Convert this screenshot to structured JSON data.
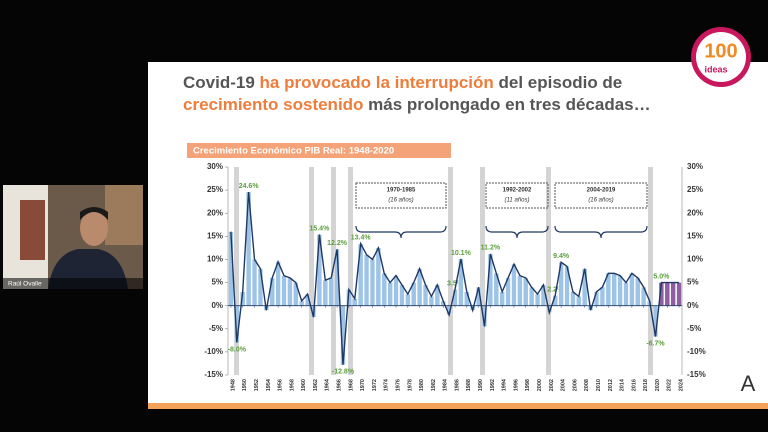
{
  "call": {
    "participant_name": "Raúl Ovalle"
  },
  "logo": {
    "number": "100",
    "word": "ideas"
  },
  "slide": {
    "title": [
      "Covid-19 ",
      "ha provocado la interrupción",
      " del episodio de",
      "crecimiento sostenido",
      " más prolongado en tres décadas…"
    ],
    "periods": [
      {
        "range": "1970-1985",
        "duration": "(16 años)"
      },
      {
        "range": "1992-2002",
        "duration": "(11 años)"
      },
      {
        "range": "2004-2019",
        "duration": "(16 años)"
      }
    ]
  },
  "chart_data": {
    "type": "bar",
    "title": "Crecimiento Económico PIB Real: 1948-2020",
    "x": [
      1948,
      1949,
      1950,
      1951,
      1952,
      1953,
      1954,
      1955,
      1956,
      1957,
      1958,
      1959,
      1960,
      1961,
      1962,
      1963,
      1964,
      1965,
      1966,
      1967,
      1968,
      1969,
      1970,
      1971,
      1972,
      1973,
      1974,
      1975,
      1976,
      1977,
      1978,
      1979,
      1980,
      1981,
      1982,
      1983,
      1984,
      1985,
      1986,
      1987,
      1988,
      1989,
      1990,
      1991,
      1992,
      1993,
      1994,
      1995,
      1996,
      1997,
      1998,
      1999,
      2000,
      2001,
      2002,
      2003,
      2004,
      2005,
      2006,
      2007,
      2008,
      2009,
      2010,
      2011,
      2012,
      2013,
      2014,
      2015,
      2016,
      2017,
      2018,
      2019,
      2020,
      2021,
      2022,
      2023,
      2024
    ],
    "values": [
      16,
      -8,
      3,
      24.6,
      10,
      8,
      -1,
      6,
      9.5,
      6.5,
      6,
      5,
      1,
      2.5,
      -2.5,
      15.4,
      5.5,
      6,
      12.2,
      -12.8,
      3.5,
      1.5,
      13.4,
      11,
      10,
      12.5,
      7,
      5,
      6.5,
      4.5,
      2.5,
      5,
      8,
      4.5,
      2,
      4.5,
      1,
      -2,
      3.5,
      10.1,
      3,
      -1,
      4,
      -4.5,
      11.2,
      7,
      3,
      6,
      9,
      6.5,
      6,
      4,
      2.5,
      4.5,
      -1.5,
      2.2,
      9.4,
      8.5,
      3,
      2,
      8,
      -1,
      3,
      4,
      7,
      7,
      6.5,
      5,
      7,
      6,
      4,
      1,
      -6.7,
      5,
      5,
      5,
      5
    ],
    "value_labels": [
      null,
      "-8.0%",
      null,
      "24.6%",
      null,
      null,
      null,
      null,
      null,
      null,
      null,
      null,
      null,
      null,
      null,
      "15.4%",
      null,
      null,
      "12.2%",
      "-12.8%",
      null,
      null,
      "13.4%",
      null,
      null,
      null,
      null,
      null,
      null,
      null,
      null,
      null,
      null,
      null,
      null,
      null,
      null,
      null,
      "3.5%",
      "10.1%",
      null,
      null,
      null,
      null,
      "11.2%",
      null,
      null,
      null,
      null,
      null,
      null,
      null,
      null,
      null,
      null,
      "2.2%",
      "9.4%",
      null,
      null,
      null,
      null,
      null,
      null,
      null,
      null,
      null,
      null,
      null,
      null,
      null,
      null,
      null,
      "-6.7%",
      "5.0%",
      null,
      null,
      null
    ],
    "colors": [
      "#9dc3e6",
      "#9dc3e6",
      "#9dc3e6",
      "#9dc3e6",
      "#9dc3e6",
      "#9dc3e6",
      "#9dc3e6",
      "#9dc3e6",
      "#9dc3e6",
      "#9dc3e6",
      "#9dc3e6",
      "#9dc3e6",
      "#9dc3e6",
      "#9dc3e6",
      "#9dc3e6",
      "#9dc3e6",
      "#9dc3e6",
      "#9dc3e6",
      "#9dc3e6",
      "#9dc3e6",
      "#9dc3e6",
      "#9dc3e6",
      "#9dc3e6",
      "#9dc3e6",
      "#9dc3e6",
      "#9dc3e6",
      "#9dc3e6",
      "#9dc3e6",
      "#9dc3e6",
      "#9dc3e6",
      "#9dc3e6",
      "#9dc3e6",
      "#9dc3e6",
      "#9dc3e6",
      "#9dc3e6",
      "#9dc3e6",
      "#9dc3e6",
      "#9dc3e6",
      "#9dc3e6",
      "#9dc3e6",
      "#9dc3e6",
      "#9dc3e6",
      "#9dc3e6",
      "#9dc3e6",
      "#9dc3e6",
      "#9dc3e6",
      "#9dc3e6",
      "#9dc3e6",
      "#9dc3e6",
      "#9dc3e6",
      "#9dc3e6",
      "#9dc3e6",
      "#9dc3e6",
      "#9dc3e6",
      "#9dc3e6",
      "#9dc3e6",
      "#9dc3e6",
      "#9dc3e6",
      "#9dc3e6",
      "#9dc3e6",
      "#9dc3e6",
      "#9dc3e6",
      "#9dc3e6",
      "#9dc3e6",
      "#9dc3e6",
      "#9dc3e6",
      "#9dc3e6",
      "#9dc3e6",
      "#9dc3e6",
      "#9dc3e6",
      "#9dc3e6",
      "#9dc3e6",
      "#9dc3e6",
      "#8e5ea2",
      "#8e5ea2",
      "#8e5ea2",
      "#8e5ea2"
    ],
    "line_color": "#1f3864",
    "xlim": [
      1947.5,
      2024.5
    ],
    "xticks": [
      1948,
      1950,
      1952,
      1954,
      1956,
      1958,
      1960,
      1962,
      1964,
      1966,
      1968,
      1970,
      1972,
      1974,
      1976,
      1978,
      1980,
      1982,
      1984,
      1986,
      1988,
      1990,
      1992,
      1994,
      1996,
      1998,
      2000,
      2002,
      2004,
      2006,
      2008,
      2010,
      2012,
      2014,
      2016,
      2018,
      2020,
      2022,
      2024
    ],
    "ylim": [
      -15,
      30
    ],
    "yticks": [
      {
        "value": -15,
        "label": "-15%"
      },
      {
        "value": -10,
        "label": "-10%"
      },
      {
        "value": -5,
        "label": "-5%"
      },
      {
        "value": 0,
        "label": "0%"
      },
      {
        "value": 5,
        "label": "5%"
      },
      {
        "value": 10,
        "label": "10%"
      },
      {
        "value": 15,
        "label": "15%"
      },
      {
        "value": 20,
        "label": "20%"
      },
      {
        "value": 25,
        "label": "25%"
      },
      {
        "value": 30,
        "label": "30%"
      }
    ]
  }
}
